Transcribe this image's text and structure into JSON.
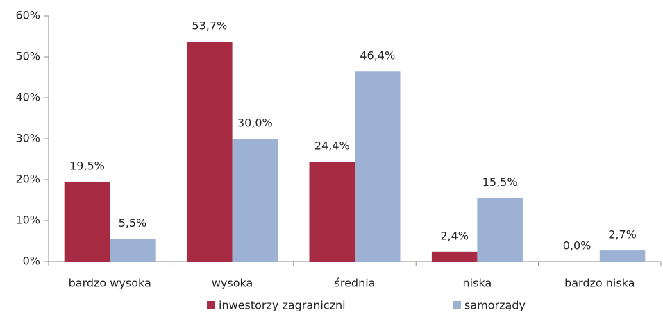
{
  "chart_data": {
    "type": "bar",
    "categories": [
      "bardzo wysoka",
      "wysoka",
      "średnia",
      "niska",
      "bardzo niska"
    ],
    "series": [
      {
        "name": "inwestorzy zagraniczni",
        "color": "#a62b43",
        "values": [
          19.5,
          53.7,
          24.4,
          2.4,
          0.0
        ],
        "value_labels": [
          "19,5%",
          "53,7%",
          "24,4%",
          "2,4%",
          "0,0%"
        ]
      },
      {
        "name": "samorządy",
        "color": "#9db1d5",
        "values": [
          5.5,
          30.0,
          46.4,
          15.5,
          2.7
        ],
        "value_labels": [
          "5,5%",
          "30,0%",
          "46,4%",
          "15,5%",
          "2,7%"
        ]
      }
    ],
    "ylim": [
      0,
      60
    ],
    "yticks": [
      {
        "value": 0,
        "label": "0%"
      },
      {
        "value": 10,
        "label": "10%"
      },
      {
        "value": 20,
        "label": "20%"
      },
      {
        "value": 30,
        "label": "30%"
      },
      {
        "value": 40,
        "label": "40%"
      },
      {
        "value": 50,
        "label": "50%"
      },
      {
        "value": 60,
        "label": "60%"
      }
    ],
    "grid": false,
    "legend": "bottom"
  }
}
